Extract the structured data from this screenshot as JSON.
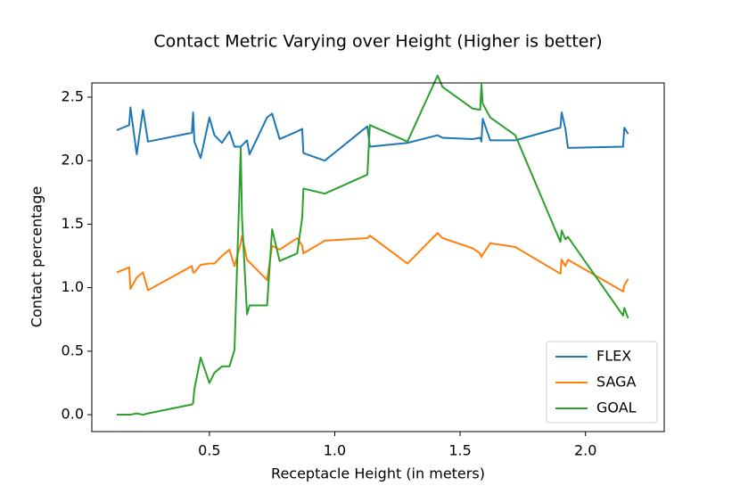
{
  "chart_data": {
    "type": "line",
    "title": "Contact Metric Varying over Height (Higher is better)",
    "x_label": "Receptacle Height (in meters)",
    "y_label": "Contact percentage",
    "x": [
      0.13,
      0.18,
      0.185,
      0.21,
      0.235,
      0.255,
      0.43,
      0.435,
      0.44,
      0.465,
      0.5,
      0.52,
      0.55,
      0.58,
      0.6,
      0.625,
      0.63,
      0.65,
      0.66,
      0.73,
      0.75,
      0.78,
      0.85,
      0.87,
      0.875,
      0.96,
      1.13,
      1.14,
      1.29,
      1.41,
      1.43,
      1.55,
      1.58,
      1.585,
      1.59,
      1.62,
      1.72,
      1.9,
      1.905,
      1.92,
      1.93,
      2.15,
      2.155,
      2.17
    ],
    "series": [
      {
        "name": "FLEX",
        "color": "#1f77b4",
        "values": [
          2.24,
          2.28,
          2.42,
          2.05,
          2.4,
          2.15,
          2.22,
          2.38,
          2.15,
          2.02,
          2.34,
          2.2,
          2.14,
          2.23,
          2.11,
          2.11,
          2.12,
          2.16,
          2.05,
          2.34,
          2.37,
          2.17,
          2.23,
          2.25,
          2.06,
          2.0,
          2.27,
          2.11,
          2.14,
          2.2,
          2.18,
          2.17,
          2.18,
          2.15,
          2.33,
          2.16,
          2.16,
          2.26,
          2.38,
          2.25,
          2.1,
          2.11,
          2.26,
          2.21
        ]
      },
      {
        "name": "SAGA",
        "color": "#ff7f0e",
        "values": [
          1.12,
          1.16,
          0.99,
          1.08,
          1.12,
          0.98,
          1.17,
          1.12,
          1.12,
          1.18,
          1.19,
          1.19,
          1.25,
          1.3,
          1.17,
          1.35,
          1.41,
          1.22,
          1.2,
          1.06,
          1.33,
          1.3,
          1.39,
          1.33,
          1.27,
          1.37,
          1.39,
          1.41,
          1.19,
          1.43,
          1.39,
          1.31,
          1.27,
          1.24,
          1.26,
          1.35,
          1.32,
          1.11,
          1.22,
          1.17,
          1.22,
          0.97,
          1.02,
          1.07
        ]
      },
      {
        "name": "GOAL",
        "color": "#2ca02c",
        "values": [
          0.0,
          0.0,
          0.0,
          0.01,
          0.0,
          0.01,
          0.08,
          0.09,
          0.2,
          0.45,
          0.25,
          0.33,
          0.38,
          0.38,
          0.51,
          2.1,
          1.55,
          0.79,
          0.86,
          0.86,
          1.46,
          1.21,
          1.27,
          1.55,
          1.78,
          1.74,
          1.89,
          2.28,
          2.15,
          2.67,
          2.58,
          2.41,
          2.4,
          2.6,
          2.45,
          2.34,
          2.2,
          1.36,
          1.45,
          1.38,
          1.4,
          0.78,
          0.84,
          0.76
        ]
      }
    ],
    "xlim": [
      0.031,
      2.314
    ],
    "ylim": [
      -0.133,
      2.612
    ],
    "xticks": [
      0.5,
      {
        "value": 1.0,
        "label": "1.0"
      },
      1.5,
      {
        "value": 2.0,
        "label": "2.0"
      }
    ],
    "yticks": [
      {
        "value": 0.0,
        "label": "0.0"
      },
      0.5,
      {
        "value": 1.0,
        "label": "1.0"
      },
      1.5,
      {
        "value": 2.0,
        "label": "2.0"
      },
      2.5
    ],
    "grid": false,
    "legend": "lower right"
  }
}
